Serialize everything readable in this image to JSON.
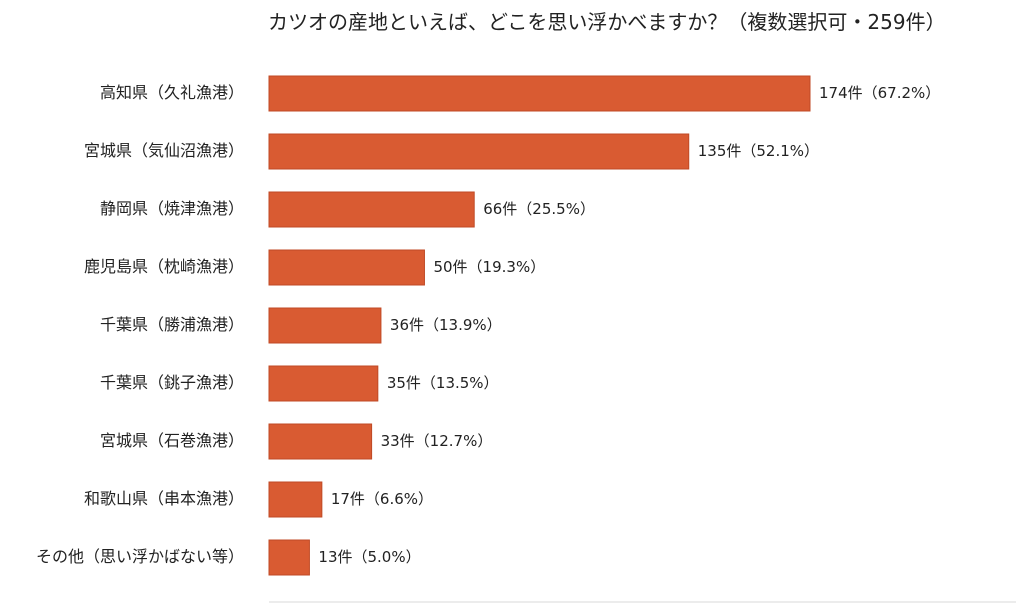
{
  "chart_data": {
    "type": "bar",
    "orientation": "horizontal",
    "title": "カツオの産地といえば、どこを思い浮かべますか？（複数選択可・259件）",
    "xlabel": "",
    "ylabel": "",
    "categories": [
      "高知県（久礼漁港）",
      "宮城県（気仙沼漁港）",
      "静岡県（焼津漁港）",
      "鹿児島県（枕崎漁港）",
      "千葉県（勝浦漁港）",
      "千葉県（銚子漁港）",
      "宮城県（石巻漁港）",
      "和歌山県（串本漁港）",
      "その他（思い浮かばない等）"
    ],
    "values": [
      174,
      135,
      66,
      50,
      36,
      35,
      33,
      17,
      13
    ],
    "value_labels": [
      "174件（67.2%）",
      "135件（52.1%）",
      "66件（25.5%）",
      "50件（19.3%）",
      "36件（13.9%）",
      "35件（13.5%）",
      "33件（12.7%）",
      "17件（6.6%）",
      "13件（5.0%）"
    ],
    "xlim": [
      0,
      174
    ],
    "grid": false,
    "legend": "none",
    "bar_color": "#d95b32",
    "bar_border_color": "#c04a25",
    "axis_color": "#d8d8d8"
  }
}
